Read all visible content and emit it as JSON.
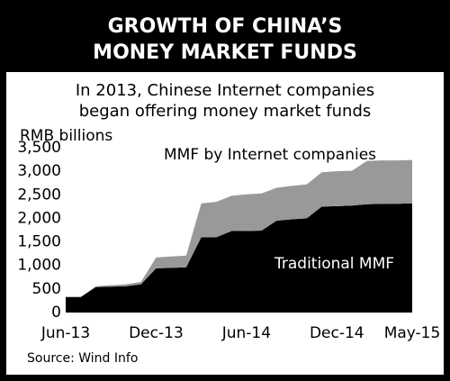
{
  "chart_data": {
    "type": "stacked-area",
    "title": [
      "GROWTH OF CHINA’S",
      "MONEY MARKET FUNDS"
    ],
    "subtitle": [
      "In 2013, Chinese Internet companies",
      "began offering money market funds"
    ],
    "y_label": "RMB billions",
    "source": "Source: Wind Info",
    "categories": [
      "Jun-13",
      null,
      null,
      null,
      null,
      null,
      "Dec-13",
      null,
      null,
      null,
      null,
      null,
      "Jun-14",
      null,
      null,
      null,
      null,
      null,
      "Dec-14",
      null,
      null,
      null,
      null,
      "May-15"
    ],
    "series": [
      {
        "name": "Traditional MMF",
        "color": "#000000",
        "values": [
          330,
          330,
          540,
          550,
          560,
          600,
          940,
          950,
          960,
          1600,
          1600,
          1730,
          1730,
          1740,
          1950,
          1980,
          2000,
          2250,
          2260,
          2270,
          2300,
          2310,
          2310,
          2320
        ]
      },
      {
        "name": "MMF by Internet companies",
        "color": "#999999",
        "values": [
          0,
          0,
          20,
          30,
          40,
          50,
          230,
          240,
          250,
          720,
          750,
          750,
          780,
          790,
          700,
          710,
          720,
          730,
          740,
          740,
          920,
          920,
          920,
          920
        ]
      }
    ],
    "ylim": [
      0,
      3500
    ],
    "yticks": [
      0,
      500,
      {
        "value": 1000,
        "label": "1,000"
      },
      {
        "value": 1500,
        "label": "1,500"
      },
      {
        "value": 2000,
        "label": "2,000"
      },
      {
        "value": 2500,
        "label": "2,500"
      },
      {
        "value": 3000,
        "label": "3,000"
      },
      {
        "value": 3500,
        "label": "3,500"
      }
    ]
  }
}
